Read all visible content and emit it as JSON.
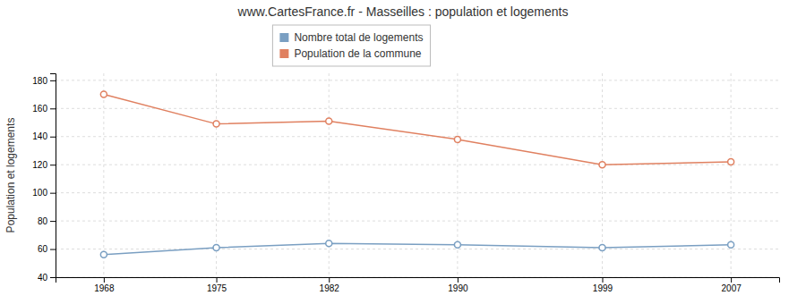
{
  "chart_data": {
    "type": "line",
    "title": "www.CartesFrance.fr - Masseilles : population et logements",
    "ylabel": "Population et logements",
    "x": [
      1968,
      1975,
      1982,
      1990,
      1999,
      2007
    ],
    "xlim": [
      1965,
      2010
    ],
    "xticks": [
      1968,
      1975,
      1982,
      1990,
      1999,
      2007
    ],
    "ylim": [
      40,
      185
    ],
    "yticks": [
      40,
      60,
      80,
      100,
      120,
      140,
      160,
      180
    ],
    "series": [
      {
        "name": "Nombre total de logements",
        "color": "#7a9fc2",
        "marker": "circle",
        "values": [
          56,
          61,
          64,
          63,
          61,
          63
        ]
      },
      {
        "name": "Population de la commune",
        "color": "#e08060",
        "marker": "circle",
        "values": [
          170,
          149,
          151,
          138,
          120,
          122
        ]
      }
    ],
    "grid": true,
    "legend": "top"
  }
}
